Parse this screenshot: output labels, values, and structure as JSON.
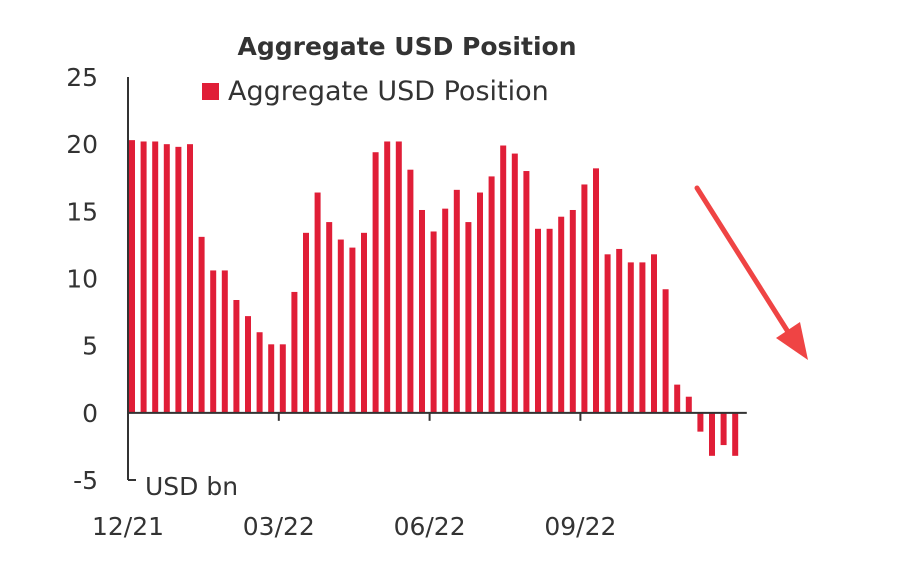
{
  "chart_data": {
    "type": "bar",
    "title": "Aggregate USD Position",
    "unit_label": "USD bn",
    "legend": {
      "entries": [
        "Aggregate USD Position"
      ],
      "placement": "top"
    },
    "ylim": [
      -5,
      25
    ],
    "yticks": [
      25,
      20,
      15,
      10,
      5,
      0,
      -5
    ],
    "xtick_labels": [
      "12/21",
      "03/22",
      "06/22",
      "09/22"
    ],
    "xtick_bar_index": [
      0,
      13,
      26,
      39
    ],
    "grid": false,
    "colors": {
      "bars": "#e01e37",
      "annotation_arrow": "#ef4444"
    },
    "annotation": "downward-trend-arrow",
    "series": [
      {
        "name": "Aggregate USD Position",
        "values": [
          20.3,
          20.2,
          20.2,
          20.0,
          19.8,
          20.0,
          13.1,
          10.6,
          10.6,
          8.4,
          7.2,
          6.0,
          5.1,
          5.1,
          9.0,
          13.4,
          16.4,
          14.2,
          12.9,
          12.3,
          13.4,
          19.4,
          20.2,
          20.2,
          18.1,
          15.1,
          13.5,
          15.2,
          16.6,
          14.2,
          16.4,
          17.6,
          19.9,
          19.3,
          18.0,
          13.7,
          13.7,
          14.6,
          15.1,
          17.0,
          18.2,
          11.8,
          12.2,
          11.2,
          11.2,
          11.8,
          9.2,
          2.1,
          1.2,
          -1.4,
          -3.2,
          -2.4,
          -3.2
        ]
      }
    ]
  }
}
